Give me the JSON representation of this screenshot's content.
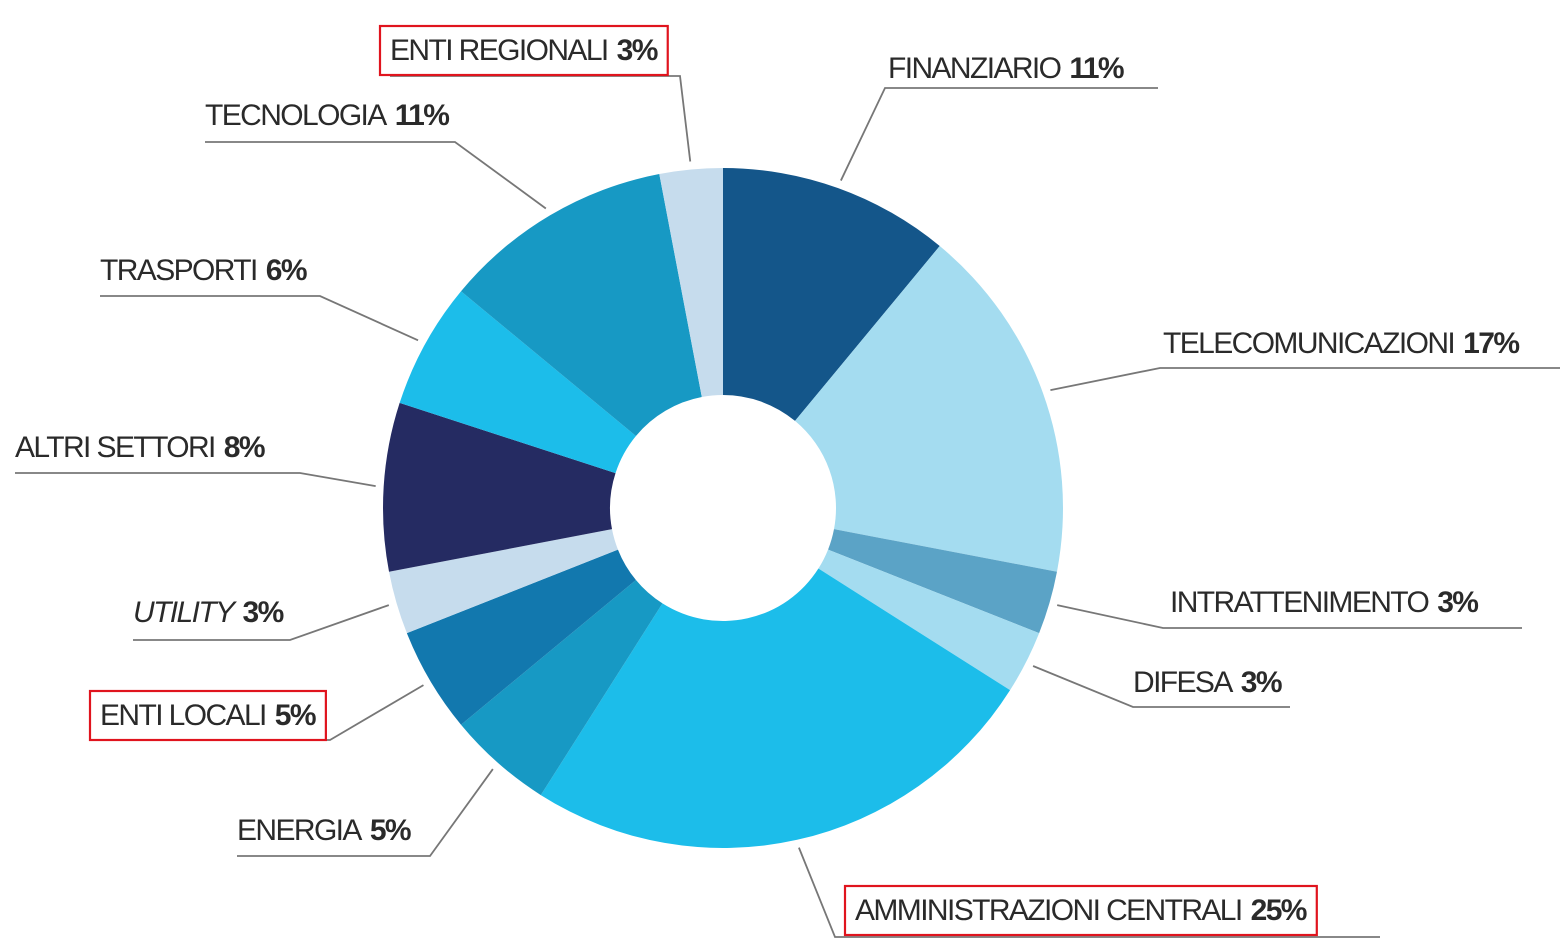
{
  "chart_data": {
    "type": "donut",
    "categories": [
      "FINANZIARIO",
      "TELECOMUNICAZIONI",
      "INTRATTENIMENTO",
      "DIFESA",
      "AMMINISTRAZIONI CENTRALI",
      "ENERGIA",
      "ENTI LOCALI",
      "UTILITY",
      "ALTRI SETTORI",
      "TRASPORTI",
      "TECNOLOGIA",
      "ENTI REGIONALI"
    ],
    "values": [
      11,
      17,
      3,
      3,
      25,
      5,
      5,
      3,
      8,
      6,
      11,
      3
    ],
    "value_labels": [
      "11%",
      "17%",
      "3%",
      "3%",
      "25%",
      "5%",
      "5%",
      "3%",
      "8%",
      "6%",
      "11%",
      "3%"
    ],
    "colors": [
      "#14568a",
      "#a4dcf0",
      "#5ba3c6",
      "#a4dcf0",
      "#1cbdea",
      "#1799c4",
      "#1278ae",
      "#c6dced",
      "#252b62",
      "#1cbdea",
      "#1799c4",
      "#c6dced"
    ],
    "highlighted": [
      4,
      6,
      11
    ]
  }
}
